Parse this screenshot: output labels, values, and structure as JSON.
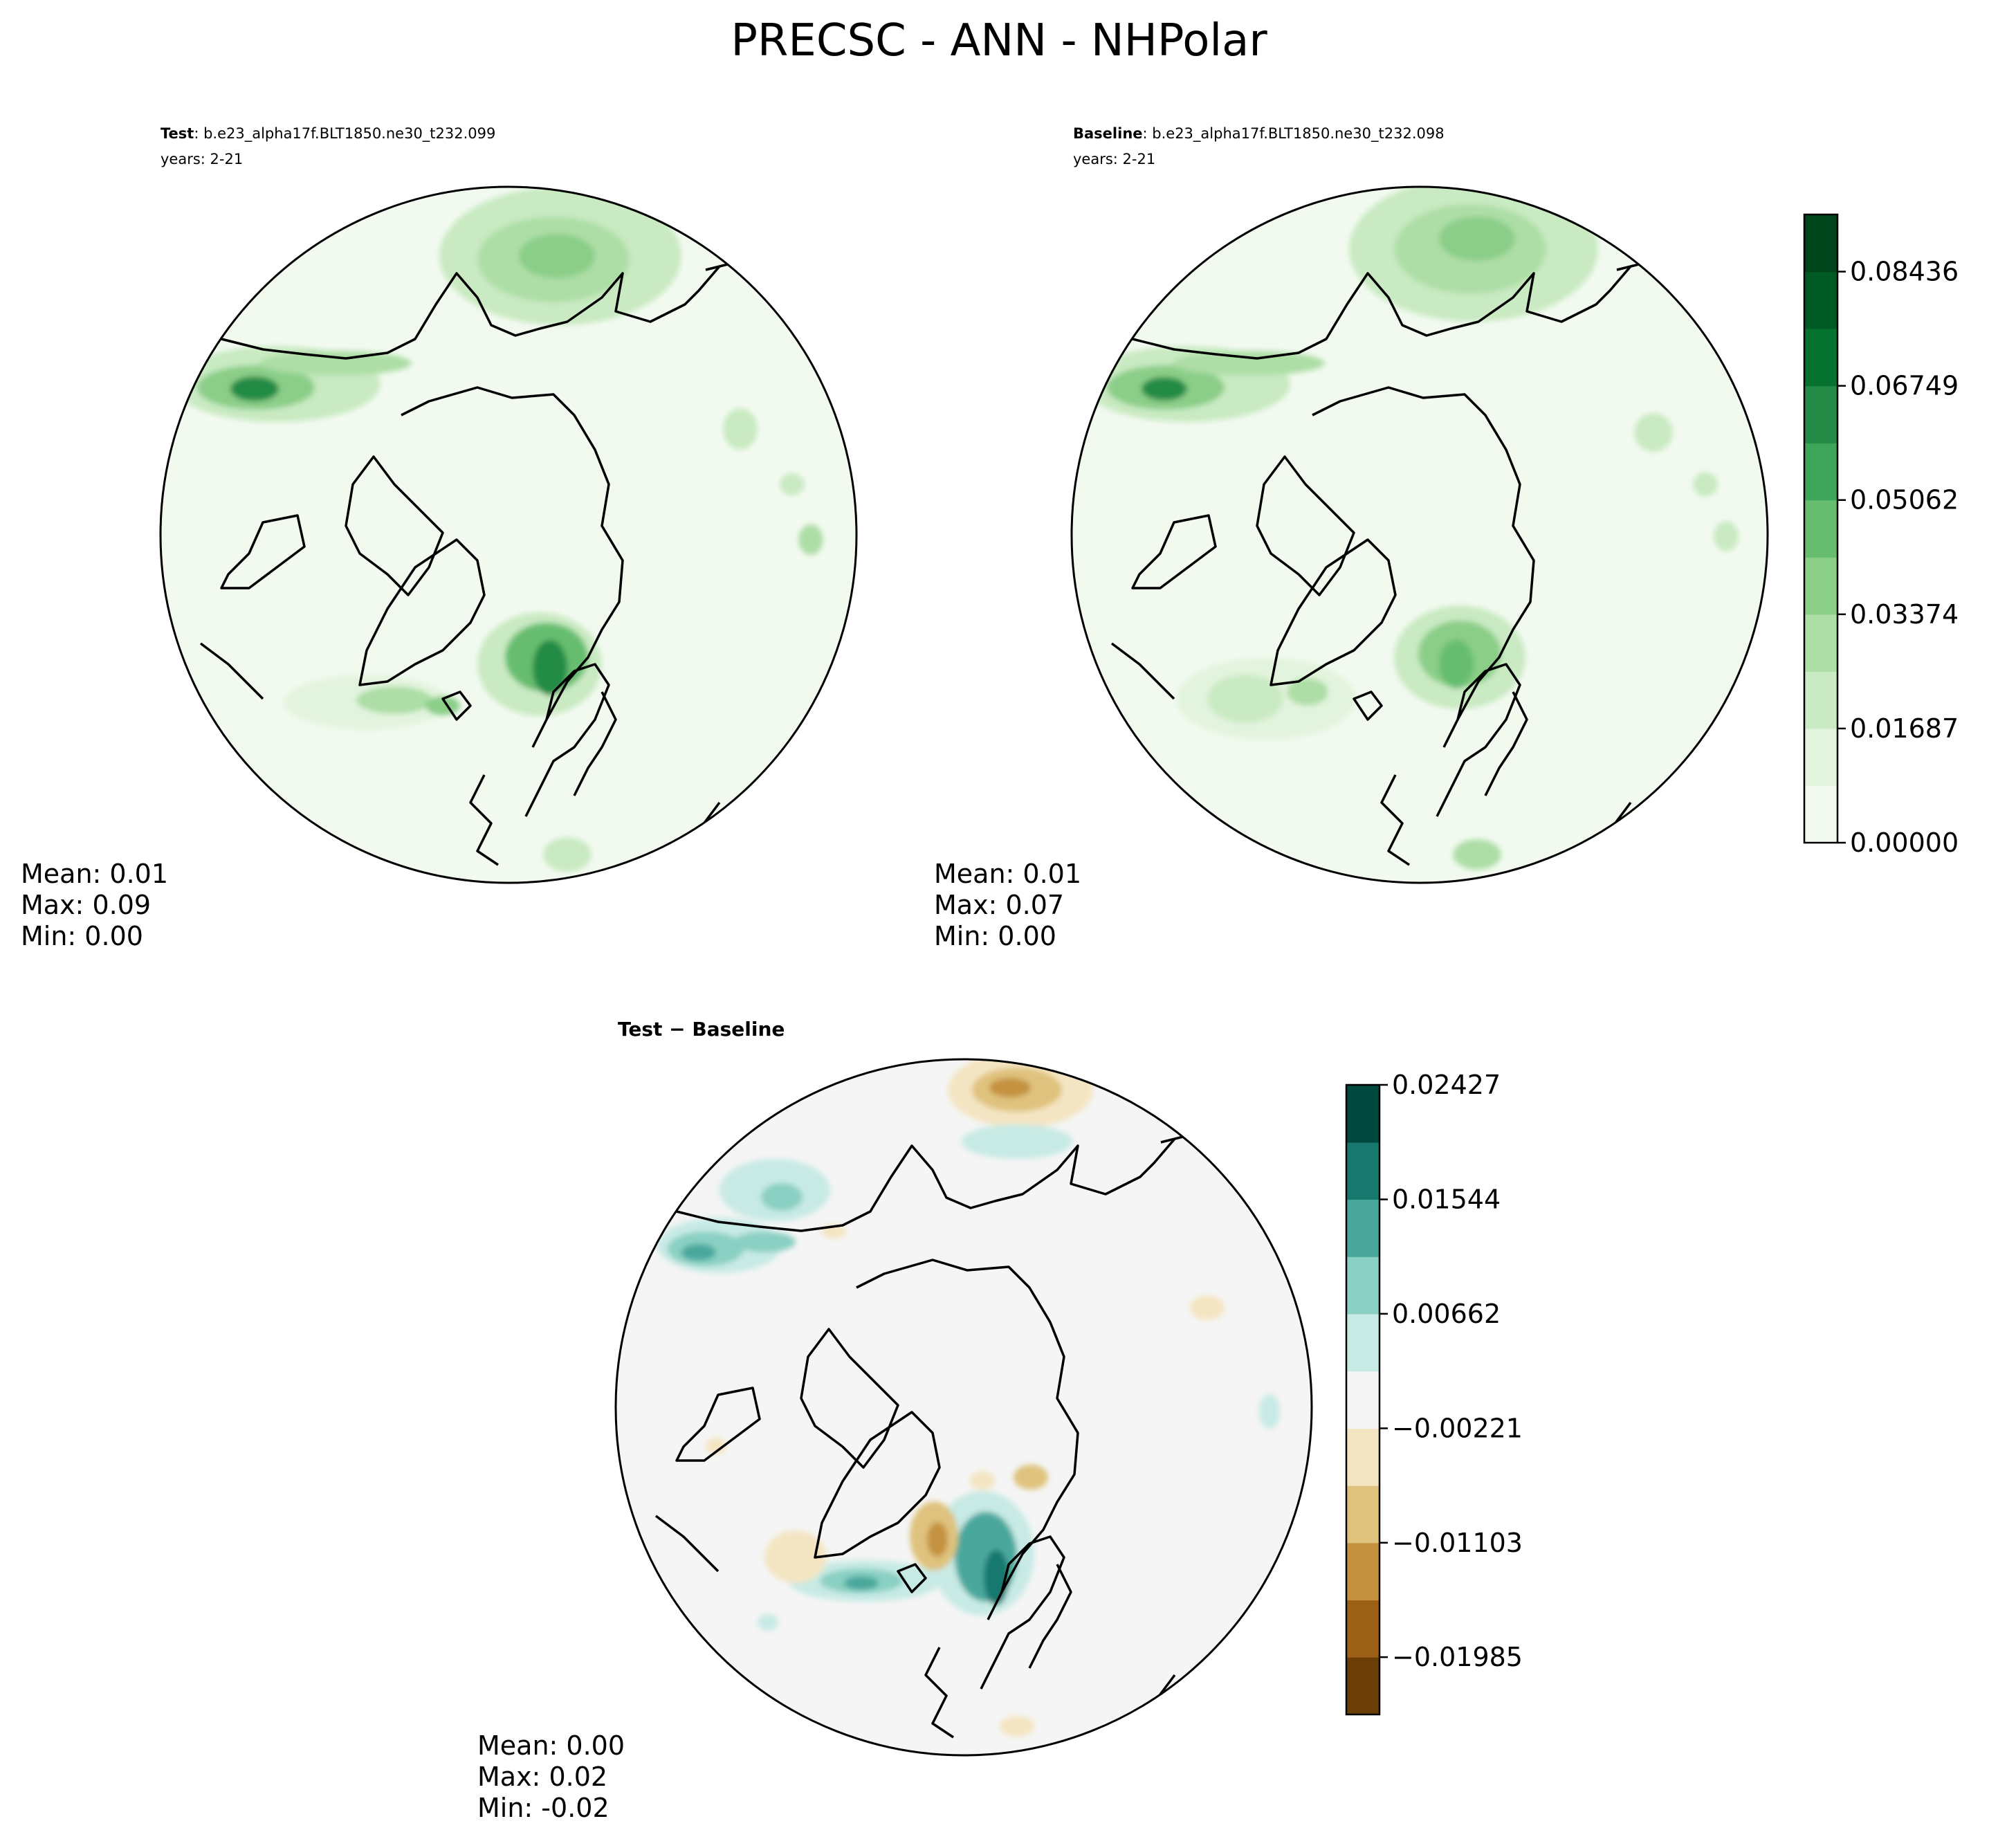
{
  "figure": {
    "title": "PRECSC - ANN - NHPolar"
  },
  "panels": [
    {
      "name": "test",
      "label_bold": "Test",
      "label_rest": ": b.e23_alpha17f.BLT1850.ne30_t232.099",
      "years": "years: 2-21",
      "stats": {
        "mean": "Mean:  0.01",
        "max": "Max:  0.09",
        "min": "Min:  0.00"
      }
    },
    {
      "name": "baseline",
      "label_bold": "Baseline",
      "label_rest": ": b.e23_alpha17f.BLT1850.ne30_t232.098",
      "years": "years: 2-21",
      "stats": {
        "mean": "Mean:  0.01",
        "max": "Max:  0.07",
        "min": "Min:  0.00"
      }
    },
    {
      "name": "difference",
      "label_bold": "Test − Baseline",
      "stats": {
        "mean": "Mean:  0.00",
        "max": "Max:  0.02",
        "min": "Min: -0.02"
      }
    }
  ],
  "chart_data": [
    {
      "type": "heatmap",
      "projection": "north-polar-stereographic",
      "colormap": "Greens",
      "colorbar": {
        "vmin": 0.0,
        "vmax": 0.0928,
        "levels": [
          0.0,
          0.00844,
          0.01687,
          0.02531,
          0.03374,
          0.04218,
          0.05062,
          0.05905,
          0.06749,
          0.07593,
          0.08436,
          0.0928
        ],
        "colors": [
          "#f2faf0",
          "#e3f4de",
          "#c9eac2",
          "#addea6",
          "#8ace88",
          "#66bd6f",
          "#3da65a",
          "#238b45",
          "#067230",
          "#005a23",
          "#00441b"
        ],
        "tick_values": [
          0.0,
          0.01687,
          0.03374,
          0.05062,
          0.06749,
          0.08436
        ],
        "tick_labels": [
          "0.00000",
          "0.01687",
          "0.03374",
          "0.05062",
          "0.06749",
          "0.08436"
        ]
      }
    },
    {
      "type": "heatmap",
      "projection": "north-polar-stereographic",
      "colormap": "BrBG",
      "colorbar": {
        "vmin": -0.02427,
        "vmax": 0.02427,
        "levels": [
          -0.02427,
          -0.01985,
          -0.01544,
          -0.01103,
          -0.00662,
          -0.00221,
          0.00221,
          0.00662,
          0.01103,
          0.01544,
          0.01985,
          0.02427
        ],
        "colors": [
          "#6b3d07",
          "#9b5f16",
          "#c4923f",
          "#dfc27d",
          "#f4e5c2",
          "#f4f5f4",
          "#c7eae5",
          "#8ad0c3",
          "#4aa79c",
          "#17786e",
          "#00493f"
        ],
        "tick_values": [
          -0.01985,
          -0.01103,
          -0.00221,
          0.00662,
          0.01544,
          0.02427
        ],
        "tick_labels": [
          "−0.01985",
          "−0.01103",
          "−0.00221",
          "0.00662",
          "0.01544",
          "0.02427"
        ]
      }
    }
  ]
}
